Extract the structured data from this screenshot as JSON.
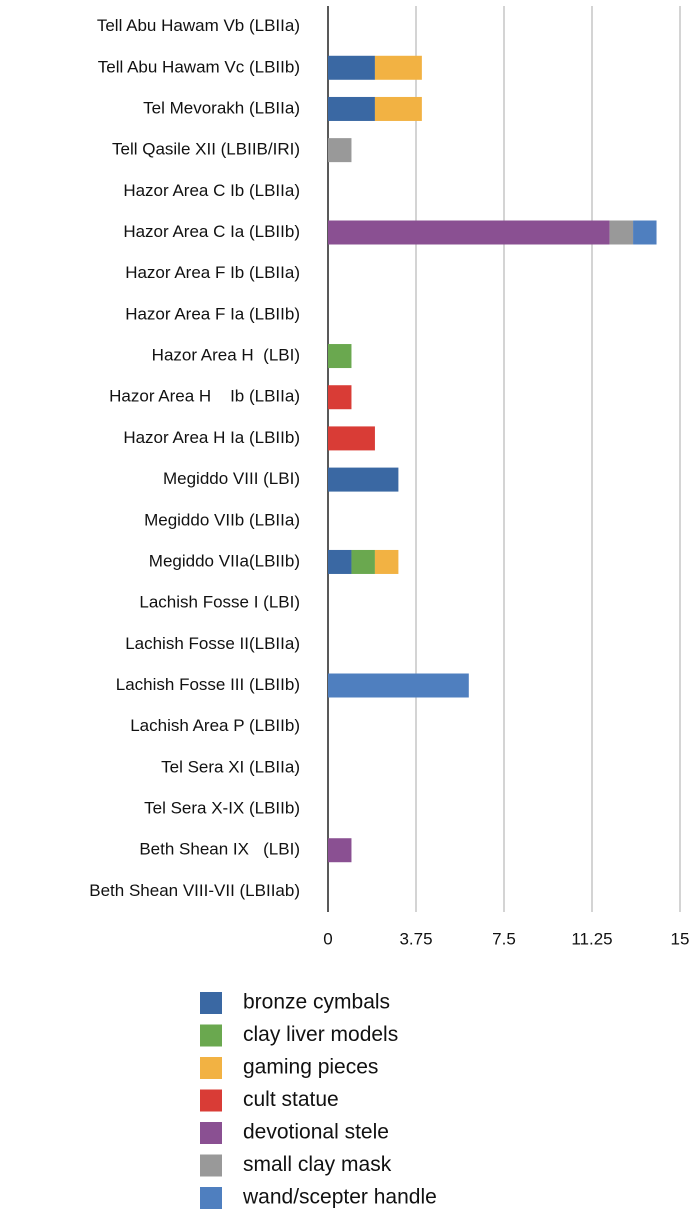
{
  "chart_data": {
    "type": "stacked_barh",
    "categories": [
      "Tell Abu Hawam Vb (LBIIa)",
      "Tell Abu Hawam Vc (LBIIb)",
      "Tel Mevorakh (LBIIa)",
      "Tell Qasile XII (LBIIB/IRI)",
      "Hazor Area C Ib (LBIIa)",
      "Hazor Area C Ia (LBIIb)",
      "Hazor Area F Ib (LBIIa)",
      "Hazor Area F Ia (LBIIb)",
      "Hazor Area H  (LBI)",
      "Hazor Area H    Ib (LBIIa)",
      "Hazor Area H Ia (LBIIb)",
      "Megiddo VIII (LBI)",
      "Megiddo VIIb (LBIIa)",
      "Megiddo VIIa(LBIIb)",
      "Lachish Fosse I (LBI)",
      "Lachish Fosse II(LBIIa)",
      "Lachish Fosse III (LBIIb)",
      "Lachish Area P (LBIIb)",
      "Tel Sera XI (LBIIa)",
      "Tel Sera X-IX (LBIIb)",
      "Beth Shean IX   (LBI)",
      "Beth Shean VIII-VII (LBIIab)"
    ],
    "series": [
      {
        "name": "bronze cymbals",
        "color": "#3a68a3",
        "values": [
          0,
          2,
          2,
          0,
          0,
          0,
          0,
          0,
          0,
          0,
          0,
          3,
          0,
          1,
          0,
          0,
          0,
          0,
          0,
          0,
          0,
          0
        ]
      },
      {
        "name": "clay liver models",
        "color": "#6aa84f",
        "values": [
          0,
          0,
          0,
          0,
          0,
          0,
          0,
          0,
          1,
          0,
          0,
          0,
          0,
          1,
          0,
          0,
          0,
          0,
          0,
          0,
          0,
          0
        ]
      },
      {
        "name": "gaming pieces",
        "color": "#f2b243",
        "values": [
          0,
          2,
          2,
          0,
          0,
          0,
          0,
          0,
          0,
          0,
          0,
          0,
          0,
          1,
          0,
          0,
          0,
          0,
          0,
          0,
          0,
          0
        ]
      },
      {
        "name": "cult statue",
        "color": "#d93c36",
        "values": [
          0,
          0,
          0,
          0,
          0,
          0,
          0,
          0,
          0,
          1,
          2,
          0,
          0,
          0,
          0,
          0,
          0,
          0,
          0,
          0,
          0,
          0
        ]
      },
      {
        "name": "devotional stele",
        "color": "#8a5092",
        "values": [
          0,
          0,
          0,
          0,
          0,
          12,
          0,
          0,
          0,
          0,
          0,
          0,
          0,
          0,
          0,
          0,
          0,
          0,
          0,
          0,
          1,
          0
        ]
      },
      {
        "name": "small clay mask",
        "color": "#999999",
        "values": [
          0,
          0,
          0,
          1,
          0,
          1,
          0,
          0,
          0,
          0,
          0,
          0,
          0,
          0,
          0,
          0,
          0,
          0,
          0,
          0,
          0,
          0
        ]
      },
      {
        "name": "wand/scepter handle",
        "color": "#4f7fbf",
        "values": [
          0,
          0,
          0,
          0,
          0,
          1,
          0,
          0,
          0,
          0,
          0,
          0,
          0,
          0,
          0,
          0,
          6,
          0,
          0,
          0,
          0,
          0
        ]
      }
    ],
    "xlim": [
      0,
      15
    ],
    "xticks": [
      0,
      3.75,
      7.5,
      11.25,
      15
    ],
    "grid": true
  }
}
